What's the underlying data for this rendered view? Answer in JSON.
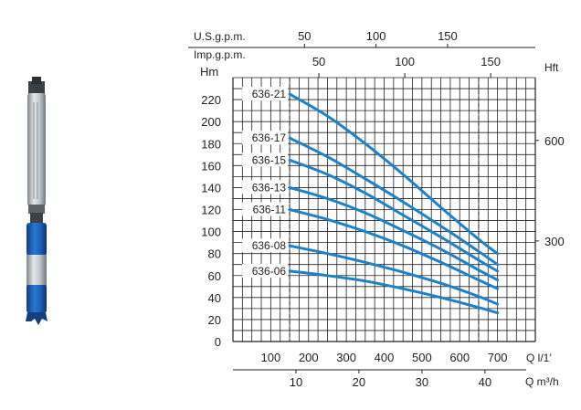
{
  "chart_data": {
    "type": "line",
    "title": "",
    "left_axis": {
      "label": "Hm",
      "ylim": [
        0,
        240
      ],
      "ticks": [
        0,
        20,
        40,
        60,
        80,
        100,
        120,
        140,
        160,
        180,
        200,
        220
      ]
    },
    "right_axis": {
      "label": "Hft",
      "ticks": [
        300,
        600
      ],
      "tick_labels": [
        "300",
        "600"
      ]
    },
    "x_axes": [
      {
        "label": "U.S.g.p.m.",
        "tick_values": [
          50,
          100,
          150
        ],
        "tick_labels": [
          "50",
          "100",
          "150"
        ]
      },
      {
        "label": "Imp.g.p.m.",
        "tick_values": [
          50,
          100,
          150
        ],
        "tick_labels": [
          "50",
          "100",
          "150"
        ]
      },
      {
        "label": "Q l/1’",
        "tick_values": [
          100,
          200,
          300,
          400,
          500,
          600,
          700
        ],
        "tick_labels": [
          "100",
          "200",
          "300",
          "400",
          "500",
          "600",
          "700"
        ]
      },
      {
        "label": "Q m³/h",
        "tick_values": [
          10,
          20,
          30,
          40
        ],
        "tick_labels": [
          "10",
          "20",
          "30",
          "40"
        ]
      }
    ],
    "xlim_l_per_min": [
      0,
      800
    ],
    "grid": true,
    "series": [
      {
        "name": "636-21",
        "x": [
          150,
          250,
          350,
          450,
          550,
          650,
          700
        ],
        "y": [
          225,
          205,
          180,
          152,
          122,
          93,
          80
        ]
      },
      {
        "name": "636-17",
        "x": [
          150,
          250,
          350,
          450,
          550,
          650,
          700
        ],
        "y": [
          185,
          168,
          148,
          127,
          105,
          82,
          70
        ]
      },
      {
        "name": "636-15",
        "x": [
          150,
          250,
          350,
          450,
          550,
          650,
          700
        ],
        "y": [
          165,
          152,
          135,
          115,
          95,
          74,
          64
        ]
      },
      {
        "name": "636-13",
        "x": [
          150,
          250,
          350,
          450,
          550,
          650,
          700
        ],
        "y": [
          140,
          130,
          117,
          101,
          84,
          65,
          56
        ]
      },
      {
        "name": "636-11",
        "x": [
          150,
          250,
          350,
          450,
          550,
          650,
          700
        ],
        "y": [
          120,
          111,
          100,
          87,
          72,
          56,
          48
        ]
      },
      {
        "name": "636-08",
        "x": [
          150,
          250,
          350,
          450,
          550,
          650,
          700
        ],
        "y": [
          87,
          80,
          72,
          63,
          53,
          41,
          34
        ]
      },
      {
        "name": "636-06",
        "x": [
          150,
          250,
          350,
          450,
          550,
          650,
          700
        ],
        "y": [
          64,
          60,
          55,
          48,
          40,
          31,
          26
        ]
      }
    ],
    "colors": {
      "curve": "#1a82c8",
      "grid": "#222222",
      "pump_blue": "#1c5fb8",
      "pump_steel": "#a9b0b6"
    }
  },
  "product": {
    "image": "submersible-pump"
  }
}
